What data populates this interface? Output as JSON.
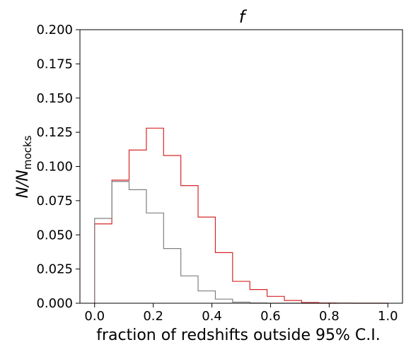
{
  "chart_data": {
    "type": "step",
    "title": "f",
    "xlabel": "fraction of redshifts outside 95% C.I.",
    "ylabel_main": "N/N",
    "ylabel_sub": "mocks",
    "xlim": [
      -0.05,
      1.05
    ],
    "ylim": [
      0,
      0.2
    ],
    "grid": false,
    "x_ticks": [
      0.0,
      0.2,
      0.4,
      0.6,
      0.8,
      1.0
    ],
    "x_tick_labels": [
      "0.0",
      "0.2",
      "0.4",
      "0.6",
      "0.8",
      "1.0"
    ],
    "y_ticks": [
      0.0,
      0.025,
      0.05,
      0.075,
      0.1,
      0.125,
      0.15,
      0.175,
      0.2
    ],
    "y_tick_labels": [
      "0.000",
      "0.025",
      "0.050",
      "0.075",
      "0.100",
      "0.125",
      "0.150",
      "0.175",
      "0.200"
    ],
    "bin_edges": [
      0.0,
      0.0588,
      0.1176,
      0.1765,
      0.2353,
      0.2941,
      0.3529,
      0.4118,
      0.4706,
      0.5294,
      0.5882,
      0.6471,
      0.7059,
      0.7647,
      0.8235,
      0.8824,
      0.9412,
      1.0
    ],
    "series": [
      {
        "color": "#d62728",
        "values": [
          0.058,
          0.09,
          0.112,
          0.128,
          0.108,
          0.086,
          0.063,
          0.037,
          0.016,
          0.01,
          0.005,
          0.002,
          0.0005,
          0.0002,
          0.0001,
          0.0,
          0.0
        ]
      },
      {
        "color": "#808080",
        "values": [
          0.062,
          0.089,
          0.083,
          0.066,
          0.04,
          0.02,
          0.009,
          0.003,
          0.0008,
          0.0002,
          0.0,
          0.0,
          0.0,
          0.0,
          0.0,
          0.0,
          0.0
        ]
      }
    ]
  }
}
